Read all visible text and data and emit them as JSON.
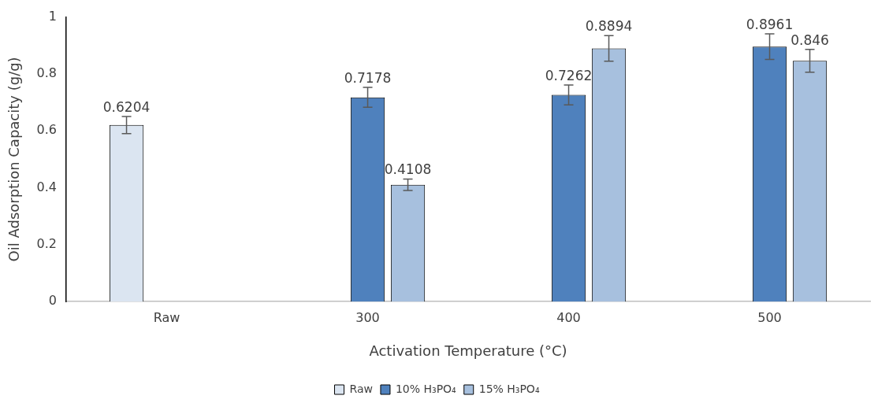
{
  "chart_data": {
    "type": "bar",
    "xlabel": "Activation Temperature (°C)",
    "ylabel": "Oil Adsorption Capacity (g/g)",
    "categories": [
      "Raw",
      "300",
      "400",
      "500"
    ],
    "series": [
      {
        "name": "Raw",
        "color": "#dbe5f1",
        "values": [
          0.6204,
          null,
          null,
          null
        ],
        "errors": [
          0.03,
          null,
          null,
          null
        ]
      },
      {
        "name": "10% H₃PO₄",
        "color": "#4f81bd",
        "values": [
          null,
          0.7178,
          0.7262,
          0.8961
        ],
        "errors": [
          null,
          0.035,
          0.035,
          0.045
        ]
      },
      {
        "name": "15% H₃PO₄",
        "color": "#a7c0de",
        "values": [
          null,
          0.4108,
          0.8894,
          0.846
        ],
        "errors": [
          null,
          0.02,
          0.045,
          0.04
        ]
      }
    ],
    "ylim": [
      0,
      1
    ],
    "yticks": [
      0,
      0.2,
      0.4,
      0.6,
      0.8,
      1
    ],
    "grid": false,
    "legend": "bottom",
    "data_labels": true
  }
}
